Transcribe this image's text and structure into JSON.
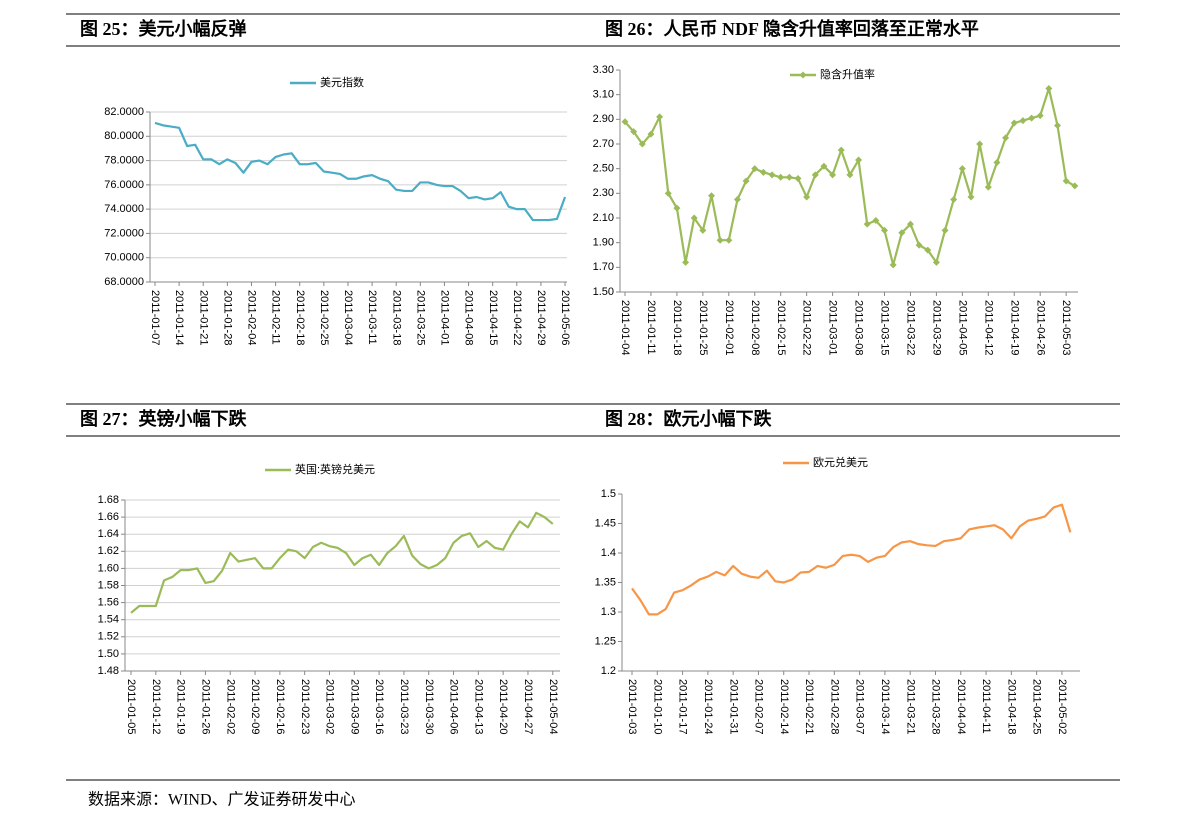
{
  "source": "数据来源：WIND、广发证券研发中心",
  "chart_data": [
    {
      "type": "line",
      "title": "图 25：美元小幅反弹",
      "categories": [
        "2011-01-07",
        null,
        null,
        "2011-01-14",
        null,
        null,
        "2011-01-21",
        null,
        null,
        "2011-01-28",
        null,
        null,
        "2011-02-04",
        null,
        null,
        "2011-02-11",
        null,
        null,
        "2011-02-18",
        null,
        null,
        "2011-02-25",
        null,
        null,
        "2011-03-04",
        null,
        null,
        "2011-03-11",
        null,
        null,
        "2011-03-18",
        null,
        null,
        "2011-03-25",
        null,
        null,
        "2011-04-01",
        null,
        null,
        "2011-04-08",
        null,
        null,
        "2011-04-15",
        null,
        null,
        "2011-04-22",
        null,
        null,
        "2011-04-29",
        null,
        null,
        "2011-05-06"
      ],
      "series": [
        {
          "name": "美元指数",
          "color": "#4bacc6",
          "values": [
            81.1,
            80.9,
            80.8,
            80.7,
            79.2,
            79.3,
            78.1,
            78.1,
            77.7,
            78.1,
            77.8,
            77.0,
            77.9,
            78.0,
            77.7,
            78.3,
            78.5,
            78.6,
            77.7,
            77.7,
            77.8,
            77.1,
            77.0,
            76.9,
            76.5,
            76.5,
            76.7,
            76.8,
            76.5,
            76.3,
            75.6,
            75.5,
            75.5,
            76.2,
            76.2,
            76.0,
            75.9,
            75.9,
            75.5,
            74.9,
            75.0,
            74.8,
            74.9,
            75.4,
            74.2,
            74.0,
            74.0,
            73.1,
            73.1,
            73.1,
            73.2,
            75.0
          ]
        }
      ],
      "ylim": [
        68,
        82
      ],
      "yticks": [
        {
          "value": 68,
          "label": "68.0000"
        },
        {
          "value": 70,
          "label": "70.0000"
        },
        {
          "value": 72,
          "label": "72.0000"
        },
        {
          "value": 74,
          "label": "74.0000"
        },
        {
          "value": 76,
          "label": "76.0000"
        },
        {
          "value": 78,
          "label": "78.0000"
        },
        {
          "value": 80,
          "label": "80.0000"
        },
        {
          "value": 82,
          "label": "82.0000"
        }
      ],
      "grid": true,
      "markers": false,
      "legend": "top"
    },
    {
      "type": "line",
      "title": "图 26：人民币 NDF 隐含升值率回落至正常水平",
      "categories": [
        "2011-01-04",
        null,
        null,
        "2011-01-11",
        null,
        null,
        "2011-01-18",
        null,
        null,
        "2011-01-25",
        null,
        null,
        "2011-02-01",
        null,
        null,
        "2011-02-08",
        null,
        null,
        "2011-02-15",
        null,
        null,
        "2011-02-22",
        null,
        null,
        "2011-03-01",
        null,
        null,
        "2011-03-08",
        null,
        null,
        "2011-03-15",
        null,
        null,
        "2011-03-22",
        null,
        null,
        "2011-03-29",
        null,
        null,
        "2011-04-05",
        null,
        null,
        "2011-04-12",
        null,
        null,
        "2011-04-19",
        null,
        null,
        "2011-04-26",
        null,
        null,
        "2011-05-03",
        null
      ],
      "series": [
        {
          "name": "隐含升值率",
          "color": "#9bbb59",
          "values": [
            2.88,
            2.8,
            2.7,
            2.78,
            2.92,
            2.3,
            2.18,
            1.74,
            2.1,
            2.0,
            2.28,
            1.92,
            1.92,
            2.25,
            2.4,
            2.5,
            2.47,
            2.45,
            2.43,
            2.43,
            2.42,
            2.27,
            2.45,
            2.52,
            2.45,
            2.65,
            2.45,
            2.57,
            2.05,
            2.08,
            2.0,
            1.72,
            1.98,
            2.05,
            1.88,
            1.84,
            1.74,
            2.0,
            2.25,
            2.5,
            2.27,
            2.7,
            2.35,
            2.55,
            2.75,
            2.87,
            2.89,
            2.91,
            2.93,
            3.15,
            2.85,
            2.4,
            2.36
          ]
        }
      ],
      "ylim": [
        1.5,
        3.3
      ],
      "yticks": [
        {
          "value": 1.5,
          "label": "1.50"
        },
        {
          "value": 1.7,
          "label": "1.70"
        },
        {
          "value": 1.9,
          "label": "1.90"
        },
        {
          "value": 2.1,
          "label": "2.10"
        },
        {
          "value": 2.3,
          "label": "2.30"
        },
        {
          "value": 2.5,
          "label": "2.50"
        },
        {
          "value": 2.7,
          "label": "2.70"
        },
        {
          "value": 2.9,
          "label": "2.90"
        },
        {
          "value": 3.1,
          "label": "3.10"
        },
        {
          "value": 3.3,
          "label": "3.30"
        }
      ],
      "grid": false,
      "markers": true,
      "legend": "top"
    },
    {
      "type": "line",
      "title": "图 27：英镑小幅下跌",
      "categories": [
        "2011-01-05",
        null,
        null,
        "2011-01-12",
        null,
        null,
        "2011-01-19",
        null,
        null,
        "2011-01-26",
        null,
        null,
        "2011-02-02",
        null,
        null,
        "2011-02-09",
        null,
        null,
        "2011-02-16",
        null,
        null,
        "2011-02-23",
        null,
        null,
        "2011-03-02",
        null,
        null,
        "2011-03-09",
        null,
        null,
        "2011-03-16",
        null,
        null,
        "2011-03-23",
        null,
        null,
        "2011-03-30",
        null,
        null,
        "2011-04-06",
        null,
        null,
        "2011-04-13",
        null,
        null,
        "2011-04-20",
        null,
        null,
        "2011-04-27",
        null,
        null,
        "2011-05-04"
      ],
      "series": [
        {
          "name": "英国:英镑兑美元",
          "color": "#9bbb59",
          "values": [
            1.548,
            1.556,
            1.556,
            1.556,
            1.586,
            1.59,
            1.598,
            1.598,
            1.6,
            1.583,
            1.585,
            1.597,
            1.618,
            1.608,
            1.61,
            1.612,
            1.6,
            1.6,
            1.612,
            1.622,
            1.62,
            1.612,
            1.625,
            1.63,
            1.626,
            1.624,
            1.618,
            1.604,
            1.612,
            1.616,
            1.604,
            1.618,
            1.626,
            1.638,
            1.615,
            1.605,
            1.6,
            1.604,
            1.612,
            1.63,
            1.638,
            1.641,
            1.625,
            1.632,
            1.624,
            1.622,
            1.64,
            1.655,
            1.648,
            1.665,
            1.66,
            1.652
          ]
        }
      ],
      "ylim": [
        1.48,
        1.68
      ],
      "yticks": [
        {
          "value": 1.48,
          "label": "1.48"
        },
        {
          "value": 1.5,
          "label": "1.50"
        },
        {
          "value": 1.52,
          "label": "1.52"
        },
        {
          "value": 1.54,
          "label": "1.54"
        },
        {
          "value": 1.56,
          "label": "1.56"
        },
        {
          "value": 1.58,
          "label": "1.58"
        },
        {
          "value": 1.6,
          "label": "1.60"
        },
        {
          "value": 1.62,
          "label": "1.62"
        },
        {
          "value": 1.64,
          "label": "1.64"
        },
        {
          "value": 1.66,
          "label": "1.66"
        },
        {
          "value": 1.68,
          "label": "1.68"
        }
      ],
      "grid": true,
      "markers": false,
      "legend": "top"
    },
    {
      "type": "line",
      "title": "图 28：欧元小幅下跌",
      "categories": [
        "2011-01-03",
        null,
        null,
        "2011-01-10",
        null,
        null,
        "2011-01-17",
        null,
        null,
        "2011-01-24",
        null,
        null,
        "2011-01-31",
        null,
        null,
        "2011-02-07",
        null,
        null,
        "2011-02-14",
        null,
        null,
        "2011-02-21",
        null,
        null,
        "2011-02-28",
        null,
        null,
        "2011-03-07",
        null,
        null,
        "2011-03-14",
        null,
        null,
        "2011-03-21",
        null,
        null,
        "2011-03-28",
        null,
        null,
        "2011-04-04",
        null,
        null,
        "2011-04-11",
        null,
        null,
        "2011-04-18",
        null,
        null,
        "2011-04-25",
        null,
        null,
        "2011-05-02",
        null
      ],
      "series": [
        {
          "name": "欧元兑美元",
          "color": "#f79646",
          "values": [
            1.34,
            1.32,
            1.296,
            1.296,
            1.305,
            1.333,
            1.337,
            1.345,
            1.355,
            1.36,
            1.368,
            1.362,
            1.378,
            1.365,
            1.36,
            1.358,
            1.37,
            1.352,
            1.35,
            1.355,
            1.367,
            1.368,
            1.378,
            1.375,
            1.38,
            1.395,
            1.397,
            1.395,
            1.385,
            1.392,
            1.395,
            1.41,
            1.418,
            1.42,
            1.415,
            1.413,
            1.412,
            1.42,
            1.422,
            1.425,
            1.44,
            1.443,
            1.445,
            1.447,
            1.44,
            1.425,
            1.445,
            1.455,
            1.458,
            1.462,
            1.477,
            1.482,
            1.435
          ]
        }
      ],
      "ylim": [
        1.2,
        1.5
      ],
      "yticks": [
        1.2,
        1.25,
        1.3,
        1.35,
        1.4,
        1.45,
        1.5
      ],
      "grid": false,
      "markers": false,
      "legend": "top"
    }
  ]
}
